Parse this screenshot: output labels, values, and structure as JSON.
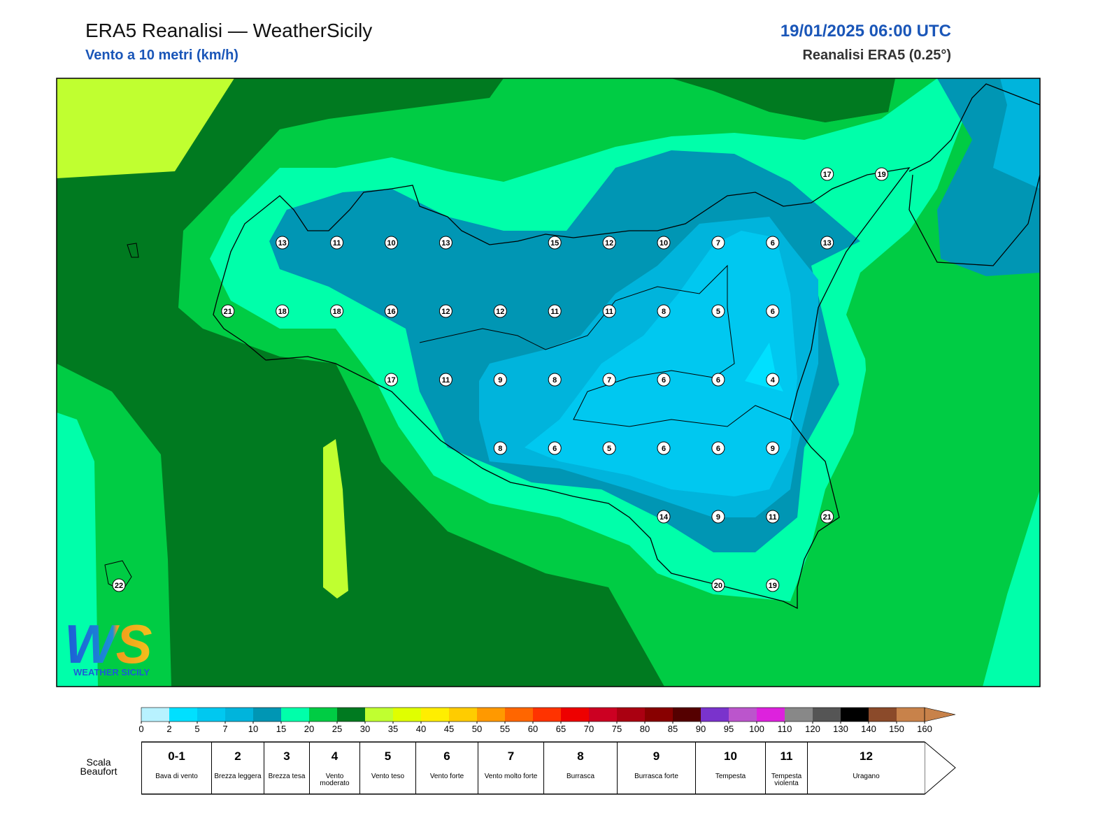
{
  "header": {
    "title": "ERA5 Reanalisi — WeatherSicily",
    "subtitle": "Vento a 10 metri (km/h)",
    "datetime": "19/01/2025 06:00 UTC",
    "source": "Reanalisi ERA5 (0.25°)"
  },
  "map": {
    "stations": [
      [
        null,
        null,
        null,
        null,
        null,
        null,
        null,
        null,
        null,
        null,
        null,
        null,
        null,
        17,
        19
      ],
      [
        null,
        null,
        null,
        13,
        11,
        10,
        13,
        null,
        15,
        12,
        10,
        7,
        6,
        13,
        null
      ],
      [
        null,
        null,
        21,
        18,
        18,
        16,
        12,
        12,
        11,
        11,
        8,
        5,
        6,
        null,
        null
      ],
      [
        null,
        null,
        null,
        null,
        null,
        17,
        11,
        9,
        8,
        7,
        6,
        6,
        4,
        null,
        null
      ],
      [
        null,
        null,
        null,
        null,
        null,
        null,
        null,
        8,
        6,
        5,
        6,
        6,
        9,
        null,
        null
      ],
      [
        null,
        null,
        null,
        null,
        null,
        null,
        null,
        null,
        null,
        null,
        14,
        9,
        11,
        21,
        null
      ],
      [
        22,
        null,
        null,
        null,
        null,
        null,
        null,
        null,
        null,
        null,
        null,
        20,
        19,
        null,
        null
      ]
    ]
  },
  "colorbar": {
    "levels": [
      0,
      2,
      5,
      7,
      10,
      15,
      20,
      25,
      30,
      35,
      40,
      45,
      50,
      55,
      60,
      65,
      70,
      75,
      80,
      85,
      90,
      95,
      100,
      110,
      120,
      130,
      140,
      150,
      160
    ],
    "colors": [
      "#b8f2ff",
      "#00e0ff",
      "#00c8f0",
      "#00b4dc",
      "#0096b4",
      "#00ffaa",
      "#00cc44",
      "#007a20",
      "#c0ff30",
      "#e0ff00",
      "#ffee00",
      "#ffcc00",
      "#ff9900",
      "#ff6600",
      "#ff3300",
      "#ee0000",
      "#cc0022",
      "#aa0011",
      "#880000",
      "#550000",
      "#7a33cc",
      "#bb55cc",
      "#dd22dd",
      "#888888",
      "#555555",
      "#000000",
      "#8b4a2a",
      "#c8824a"
    ]
  },
  "beaufort": {
    "label": "Scala Beaufort",
    "scale": [
      {
        "force": "0-1",
        "name": "Bava di vento"
      },
      {
        "force": 2,
        "name": "Brezza leggera"
      },
      {
        "force": 3,
        "name": "Brezza tesa"
      },
      {
        "force": 4,
        "name": "Vento moderato"
      },
      {
        "force": 5,
        "name": "Vento teso"
      },
      {
        "force": 6,
        "name": "Vento forte"
      },
      {
        "force": 7,
        "name": "Vento molto forte"
      },
      {
        "force": 8,
        "name": "Burrasca"
      },
      {
        "force": 9,
        "name": "Burrasca forte"
      },
      {
        "force": 10,
        "name": "Tempesta"
      },
      {
        "force": 11,
        "name": "Tempesta violenta"
      },
      {
        "force": 12,
        "name": "Uragano"
      }
    ]
  },
  "logo": {
    "mark": "WS",
    "text": "WEATHER SICILY"
  }
}
